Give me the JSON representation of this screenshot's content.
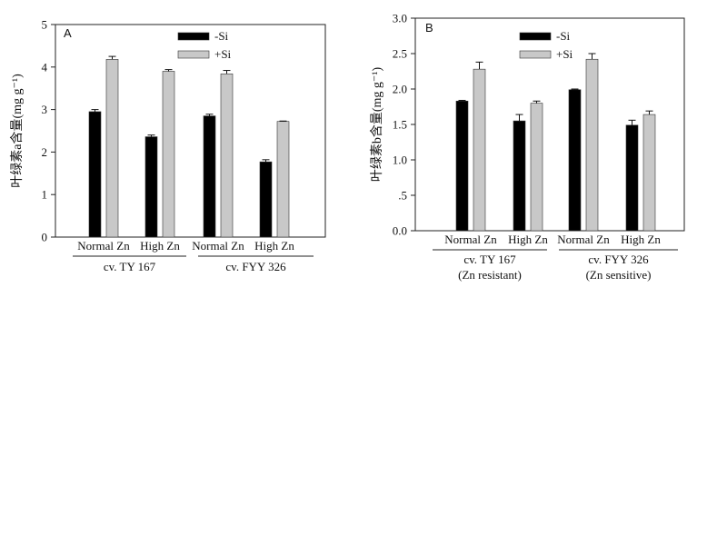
{
  "chart_data": [
    {
      "type": "bar",
      "panel_label": "A",
      "ylabel": "叶绿素a含量(mg g⁻¹)",
      "ylim": [
        0,
        5
      ],
      "yticks": [
        "0",
        "1",
        "2",
        "3",
        "4",
        "5"
      ],
      "categories": [
        "Normal Zn",
        "High Zn",
        "Normal Zn",
        "High Zn"
      ],
      "groups": [
        {
          "label": "cv. TY 167",
          "sub": ""
        },
        {
          "label": "cv. FYY 326",
          "sub": ""
        }
      ],
      "series": [
        {
          "name": "-Si",
          "color": "#000000",
          "values": [
            2.95,
            2.36,
            2.85,
            1.77
          ],
          "errors": [
            0.05,
            0.04,
            0.04,
            0.05
          ]
        },
        {
          "name": "+Si",
          "color": "#c8c8c8",
          "values": [
            4.18,
            3.9,
            3.84,
            2.72
          ],
          "errors": [
            0.07,
            0.04,
            0.08,
            0.01
          ]
        }
      ],
      "legend_position": "top"
    },
    {
      "type": "bar",
      "panel_label": "B",
      "ylabel": "叶绿素b含量(mg g⁻¹)",
      "ylim": [
        0,
        3
      ],
      "yticks": [
        "0.0",
        ".5",
        "1.0",
        "1.5",
        "2.0",
        "2.5",
        "3.0"
      ],
      "categories": [
        "Normal Zn",
        "High Zn",
        "Normal Zn",
        "High Zn"
      ],
      "groups": [
        {
          "label": "cv. TY 167",
          "sub": "(Zn resistant)"
        },
        {
          "label": "cv. FYY 326",
          "sub": "(Zn sensitive)"
        }
      ],
      "series": [
        {
          "name": "-Si",
          "color": "#000000",
          "values": [
            1.83,
            1.55,
            1.99,
            1.49
          ],
          "errors": [
            0.01,
            0.09,
            0.01,
            0.07
          ]
        },
        {
          "name": "+Si",
          "color": "#c8c8c8",
          "values": [
            2.28,
            1.8,
            2.42,
            1.64
          ],
          "errors": [
            0.1,
            0.03,
            0.08,
            0.05
          ]
        }
      ],
      "legend_position": "top"
    }
  ]
}
